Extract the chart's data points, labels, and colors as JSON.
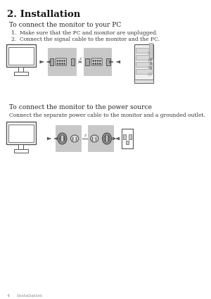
{
  "bg_color": "#ffffff",
  "title": "2. Installation",
  "section1_heading": "To connect the monitor to your PC",
  "step1": "1.  Make sure that the PC and monitor are unplugged.",
  "step2": "2.  Connect the signal cable to the monitor and the PC.",
  "section2_heading": "To connect the monitor to the power source",
  "section2_body": "Connect the separate power cable to the monitor and a grounded outlet.",
  "footer": "4     Installation",
  "gray_box": "#c8c8c8",
  "outline_color": "#555555",
  "text_color": "#333333",
  "light_fill": "#f5f5f5"
}
